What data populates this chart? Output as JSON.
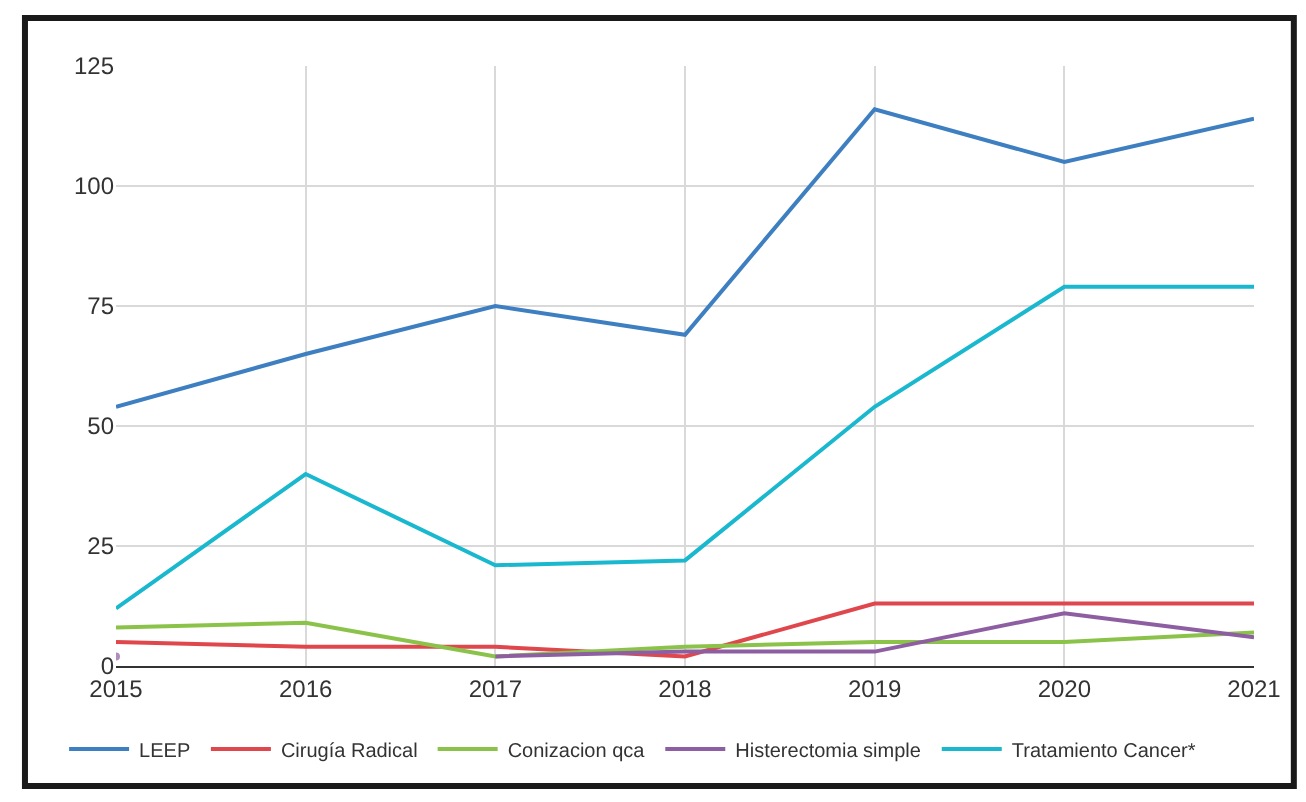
{
  "chart_data": {
    "type": "line",
    "x": [
      2015,
      2016,
      2017,
      2018,
      2019,
      2020,
      2021
    ],
    "xlim": [
      2015,
      2021
    ],
    "xticks": [
      2015,
      2016,
      2017,
      2018,
      2019,
      2020,
      2021
    ],
    "ylim": [
      0,
      125
    ],
    "yticks": [
      0,
      25,
      50,
      75,
      100,
      125
    ],
    "grid": true,
    "legend": "bottom",
    "marker": "none",
    "line_style": "solid",
    "series": [
      {
        "name": "LEEP",
        "color": "#3d7fc1",
        "values": [
          54,
          65,
          75,
          69,
          116,
          105,
          114
        ]
      },
      {
        "name": "Cirugía Radical",
        "color": "#e0474c",
        "values": [
          5,
          4,
          4,
          2,
          13,
          13,
          13
        ]
      },
      {
        "name": "Conizacion qca",
        "color": "#8bc34a",
        "values": [
          8,
          9,
          2,
          4,
          5,
          5,
          7
        ]
      },
      {
        "name": "Histerectomia simple",
        "color": "#8e5ea2",
        "values": [
          2,
          null,
          2,
          3,
          3,
          11,
          6
        ]
      },
      {
        "name": "Tratamiento Cancer*",
        "color": "#1ab8cf",
        "values": [
          12,
          40,
          21,
          22,
          54,
          79,
          79
        ]
      }
    ]
  }
}
